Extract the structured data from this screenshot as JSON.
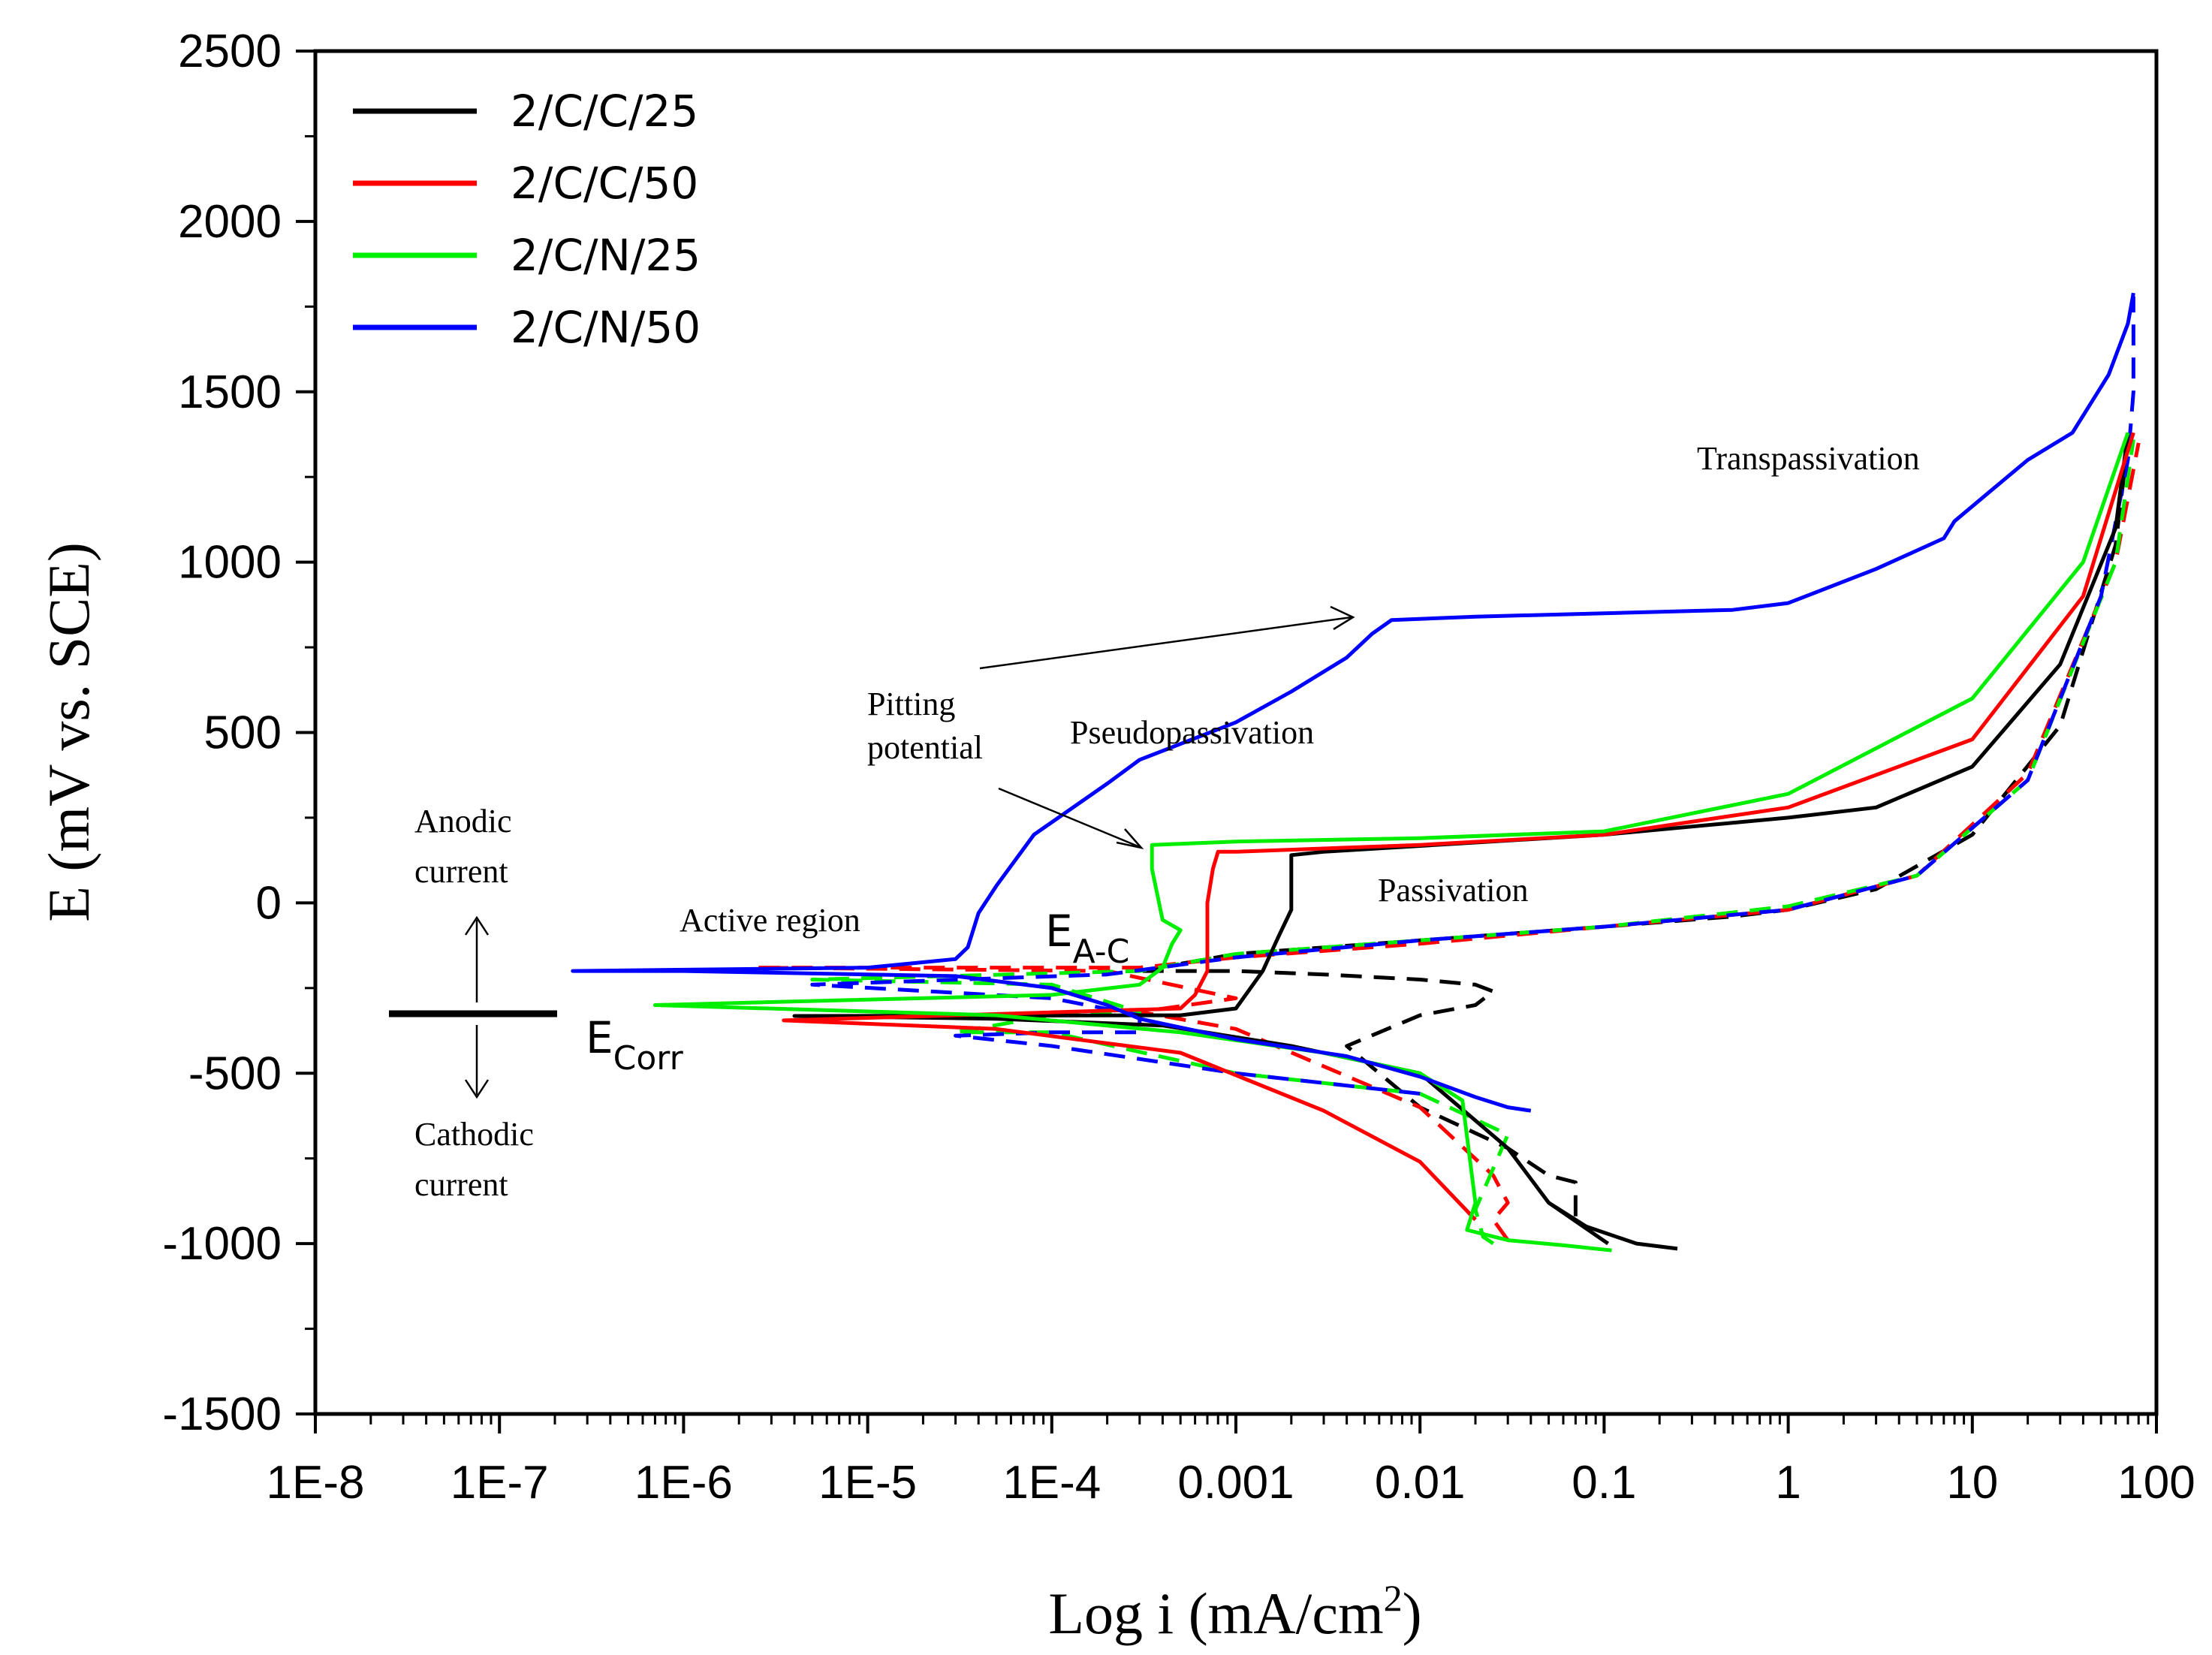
{
  "chart_data": {
    "type": "line",
    "title": "",
    "xlabel": "Log i (mA/cm",
    "xlabel_sup": "2",
    "xlabel_close": ")",
    "ylabel": "E (mV vs. SCE)",
    "x_scale": "log",
    "xlim": [
      1e-08,
      100
    ],
    "ylim": [
      -1500,
      2500
    ],
    "x_ticks": [
      1e-08,
      1e-07,
      1e-06,
      1e-05,
      0.0001,
      0.001,
      0.01,
      0.1,
      1,
      10,
      100
    ],
    "x_tick_labels": [
      "1E-8",
      "1E-7",
      "1E-6",
      "1E-5",
      "1E-4",
      "0.001",
      "0.01",
      "0.1",
      "1",
      "10",
      "100"
    ],
    "y_ticks": [
      -1500,
      -1000,
      -500,
      0,
      500,
      1000,
      1500,
      2000,
      2500
    ],
    "y_tick_labels": [
      "-1500",
      "-1000",
      "-500",
      "0",
      "500",
      "1000",
      "1500",
      "2000",
      "2500"
    ],
    "grid": false,
    "legend_position": "top-left",
    "series": [
      {
        "name": "2/C/C/25",
        "color": "#000000",
        "solid": [
          [
            0.105,
            -1000
          ],
          [
            0.05,
            -880
          ],
          [
            0.03,
            -720
          ],
          [
            0.01,
            -500
          ],
          [
            0.002,
            -420
          ],
          [
            0.0004,
            -360
          ],
          [
            5e-05,
            -340
          ],
          [
            4e-06,
            -332
          ],
          [
            0.0005,
            -330
          ],
          [
            0.001,
            -310
          ],
          [
            0.0014,
            -200
          ],
          [
            0.0017,
            -100
          ],
          [
            0.002,
            -20
          ],
          [
            0.002,
            50
          ],
          [
            0.002,
            140
          ],
          [
            0.003,
            150
          ],
          [
            0.1,
            200
          ],
          [
            1,
            250
          ],
          [
            3,
            280
          ],
          [
            10,
            400
          ],
          [
            30,
            700
          ],
          [
            60,
            1100
          ],
          [
            70,
            1380
          ]
        ],
        "solid_cathodic": [
          [
            0.25,
            -1015
          ],
          [
            0.15,
            -1000
          ],
          [
            0.08,
            -950
          ],
          [
            0.05,
            -880
          ]
        ],
        "dashed": [
          [
            0.07,
            -920
          ],
          [
            0.07,
            -820
          ],
          [
            0.05,
            -800
          ],
          [
            0.03,
            -720
          ],
          [
            0.01,
            -600
          ],
          [
            0.004,
            -420
          ],
          [
            0.01,
            -330
          ],
          [
            0.02,
            -300
          ],
          [
            0.025,
            -260
          ],
          [
            0.02,
            -240
          ],
          [
            0.01,
            -225
          ],
          [
            0.003,
            -210
          ],
          [
            0.001,
            -200
          ],
          [
            0.0003,
            -200
          ],
          [
            0.001,
            -150
          ],
          [
            0.01,
            -110
          ],
          [
            0.1,
            -70
          ],
          [
            0.5,
            -40
          ],
          [
            1,
            -20
          ],
          [
            3,
            40
          ],
          [
            10,
            200
          ],
          [
            30,
            520
          ],
          [
            60,
            1050
          ],
          [
            70,
            1350
          ]
        ]
      },
      {
        "name": "2/C/C/50",
        "color": "#ff0000",
        "solid": [
          [
            0.02,
            -930
          ],
          [
            0.01,
            -760
          ],
          [
            0.003,
            -610
          ],
          [
            0.0005,
            -440
          ],
          [
            5e-05,
            -370
          ],
          [
            3.5e-06,
            -345
          ],
          [
            0.0005,
            -310
          ],
          [
            0.0006,
            -270
          ],
          [
            0.0007,
            -200
          ],
          [
            0.0007,
            -100
          ],
          [
            0.0007,
            0
          ],
          [
            0.00075,
            100
          ],
          [
            0.0008,
            150
          ],
          [
            0.001,
            150
          ],
          [
            0.01,
            170
          ],
          [
            0.1,
            200
          ],
          [
            1,
            280
          ],
          [
            10,
            480
          ],
          [
            40,
            900
          ],
          [
            75,
            1380
          ]
        ],
        "dashed": [
          [
            0.03,
            -990
          ],
          [
            0.025,
            -930
          ],
          [
            0.03,
            -880
          ],
          [
            0.025,
            -800
          ],
          [
            0.01,
            -600
          ],
          [
            0.001,
            -370
          ],
          [
            0.0003,
            -320
          ],
          [
            0.001,
            -280
          ],
          [
            0.0002,
            -200
          ],
          [
            2.5e-06,
            -190
          ],
          [
            0.0003,
            -190
          ],
          [
            0.001,
            -160
          ],
          [
            0.01,
            -120
          ],
          [
            0.1,
            -70
          ],
          [
            1,
            -20
          ],
          [
            5,
            80
          ],
          [
            20,
            380
          ],
          [
            60,
            1000
          ],
          [
            80,
            1350
          ]
        ]
      },
      {
        "name": "2/C/N/25",
        "color": "#00ee00",
        "solid": [
          [
            0.11,
            -1020
          ],
          [
            0.06,
            -1005
          ],
          [
            0.03,
            -990
          ],
          [
            0.018,
            -960
          ],
          [
            0.02,
            -880
          ],
          [
            0.017,
            -580
          ],
          [
            0.01,
            -500
          ],
          [
            0.003,
            -440
          ],
          [
            0.0005,
            -380
          ],
          [
            5e-05,
            -330
          ],
          [
            7e-07,
            -300
          ],
          [
            0.0001,
            -270
          ],
          [
            0.0003,
            -240
          ],
          [
            0.0004,
            -190
          ],
          [
            0.00045,
            -120
          ],
          [
            0.0005,
            -80
          ],
          [
            0.0004,
            -50
          ],
          [
            0.00035,
            100
          ],
          [
            0.00035,
            170
          ],
          [
            0.001,
            180
          ],
          [
            0.01,
            190
          ],
          [
            0.1,
            210
          ],
          [
            1,
            320
          ],
          [
            10,
            600
          ],
          [
            40,
            1000
          ],
          [
            70,
            1380
          ]
        ],
        "dashed": [
          [
            0.025,
            -1000
          ],
          [
            0.022,
            -980
          ],
          [
            0.02,
            -900
          ],
          [
            0.03,
            -680
          ],
          [
            0.01,
            -560
          ],
          [
            0.001,
            -500
          ],
          [
            0.0001,
            -380
          ],
          [
            3e-05,
            -380
          ],
          [
            0.0001,
            -330
          ],
          [
            0.0003,
            -320
          ],
          [
            0.0001,
            -240
          ],
          [
            5e-06,
            -225
          ],
          [
            0.0003,
            -200
          ],
          [
            0.001,
            -150
          ],
          [
            0.01,
            -110
          ],
          [
            0.1,
            -70
          ],
          [
            1,
            -10
          ],
          [
            5,
            80
          ],
          [
            20,
            360
          ],
          [
            60,
            1000
          ],
          [
            75,
            1360
          ]
        ]
      },
      {
        "name": "2/C/N/50",
        "color": "#0000ff",
        "solid": [
          [
            0.04,
            -610
          ],
          [
            0.03,
            -600
          ],
          [
            0.02,
            -570
          ],
          [
            0.01,
            -510
          ],
          [
            0.004,
            -450
          ],
          [
            0.001,
            -400
          ],
          [
            0.0003,
            -340
          ],
          [
            0.0002,
            -300
          ],
          [
            0.0001,
            -250
          ],
          [
            3e-05,
            -215
          ],
          [
            1e-06,
            -200
          ],
          [
            2.5e-07,
            -200
          ],
          [
            1e-05,
            -190
          ],
          [
            3e-05,
            -165
          ],
          [
            3.5e-05,
            -130
          ],
          [
            4e-05,
            -30
          ],
          [
            5e-05,
            50
          ],
          [
            8e-05,
            200
          ],
          [
            0.0002,
            350
          ],
          [
            0.0003,
            420
          ],
          [
            0.001,
            530
          ],
          [
            0.002,
            620
          ],
          [
            0.004,
            720
          ],
          [
            0.0055,
            790
          ],
          [
            0.007,
            830
          ],
          [
            0.02,
            840
          ],
          [
            0.1,
            850
          ],
          [
            0.5,
            860
          ],
          [
            1,
            880
          ],
          [
            3,
            980
          ],
          [
            7,
            1070
          ],
          [
            8,
            1120
          ],
          [
            12,
            1200
          ],
          [
            20,
            1300
          ],
          [
            35,
            1380
          ],
          [
            55,
            1550
          ],
          [
            70,
            1700
          ],
          [
            75,
            1790
          ]
        ],
        "dashed": [
          [
            0.01,
            -560
          ],
          [
            0.001,
            -500
          ],
          [
            0.0001,
            -420
          ],
          [
            3e-05,
            -390
          ],
          [
            0.0001,
            -380
          ],
          [
            0.0003,
            -380
          ],
          [
            0.0003,
            -330
          ],
          [
            0.0001,
            -280
          ],
          [
            5e-06,
            -240
          ],
          [
            0.0002,
            -210
          ],
          [
            0.001,
            -160
          ],
          [
            0.01,
            -110
          ],
          [
            0.1,
            -70
          ],
          [
            1,
            -20
          ],
          [
            5,
            80
          ],
          [
            20,
            360
          ],
          [
            50,
            900
          ],
          [
            70,
            1300
          ],
          [
            75,
            1500
          ],
          [
            75,
            1780
          ]
        ]
      }
    ],
    "annotations": {
      "transpassivation": "Transpassivation",
      "pitting_line1": "Pitting",
      "pitting_line2": "potential",
      "pseudopassivation": "Pseudopassivation",
      "anodic_line1": "Anodic",
      "anodic_line2": "current",
      "passivation": "Passivation",
      "active_region": "Active region",
      "e_ac_main": "E",
      "e_ac_sub": "A-C",
      "e_corr_main": "E",
      "e_corr_sub": "Corr",
      "cathodic_line1": "Cathodic",
      "cathodic_line2": "current"
    }
  }
}
